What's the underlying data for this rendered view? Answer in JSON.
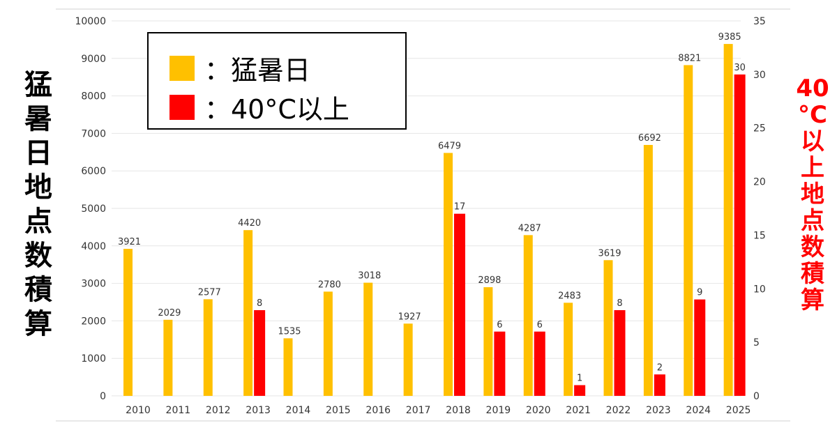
{
  "chart_data": {
    "type": "bar",
    "categories": [
      "2010",
      "2011",
      "2012",
      "2013",
      "2014",
      "2015",
      "2016",
      "2017",
      "2018",
      "2019",
      "2020",
      "2021",
      "2022",
      "2023",
      "2024",
      "2025"
    ],
    "series": [
      {
        "name": "猛暑日",
        "axis": "left",
        "color": "#FFC000",
        "values": [
          3921,
          2029,
          2577,
          4420,
          1535,
          2780,
          3018,
          1927,
          6479,
          2898,
          4287,
          2483,
          3619,
          6692,
          8821,
          9385
        ]
      },
      {
        "name": "40°C以上",
        "axis": "right",
        "color": "#FF0000",
        "values": [
          null,
          null,
          null,
          8,
          null,
          null,
          null,
          null,
          17,
          6,
          6,
          1,
          8,
          2,
          9,
          30
        ]
      }
    ],
    "ylabel": "猛暑日地点数積算",
    "ylabel_right": "40°C以上地点数積算",
    "ylim": [
      0,
      10000
    ],
    "ylim_right": [
      0,
      35
    ],
    "yticks": [
      0,
      1000,
      2000,
      3000,
      4000,
      5000,
      6000,
      7000,
      8000,
      9000,
      10000
    ],
    "yticks_right": [
      0,
      5,
      10,
      15,
      20,
      25,
      30,
      35
    ],
    "grid": true,
    "legend_position": "top-left",
    "legend": [
      {
        "label": "：猛暑日",
        "color": "#FFC000"
      },
      {
        "label": "：40°C以上",
        "color": "#FF0000"
      }
    ]
  }
}
